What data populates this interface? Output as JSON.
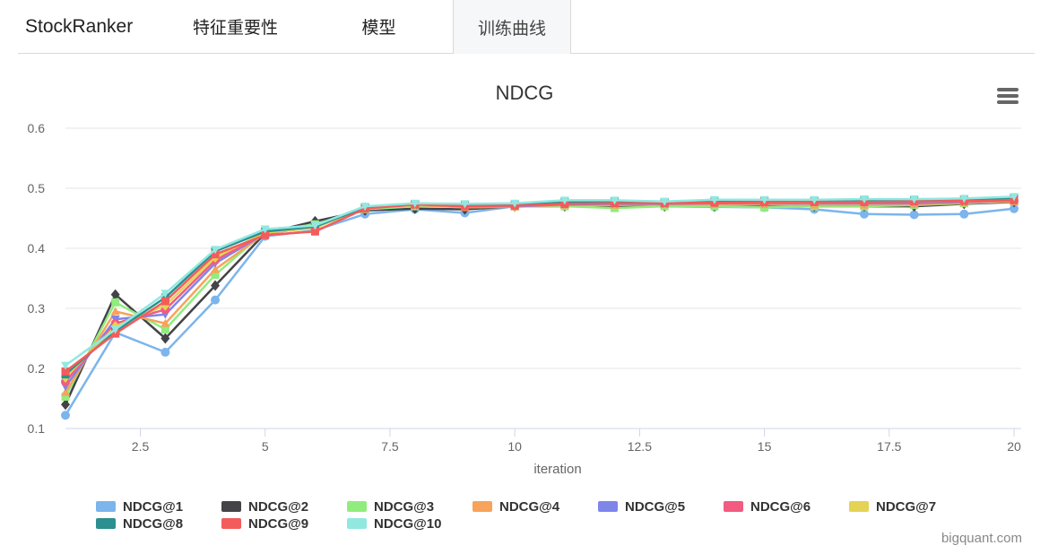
{
  "app": {
    "brand": "StockRanker",
    "tabs": [
      {
        "label": "特征重要性",
        "active": false
      },
      {
        "label": "模型",
        "active": false
      },
      {
        "label": "训练曲线",
        "active": true
      }
    ],
    "watermark": "bigquant.com"
  },
  "chart_data": {
    "type": "line",
    "title": "NDCG",
    "xlabel": "iteration",
    "ylabel": "",
    "xlim": [
      1,
      20
    ],
    "ylim": [
      0.1,
      0.6
    ],
    "x_ticks": [
      2.5,
      5,
      7.5,
      10,
      12.5,
      15,
      17.5,
      20
    ],
    "y_ticks": [
      0.1,
      0.2,
      0.3,
      0.4,
      0.5,
      0.6
    ],
    "grid": true,
    "legend_placement": "bottom",
    "x": [
      1,
      2,
      3,
      4,
      5,
      6,
      7,
      8,
      9,
      10,
      11,
      12,
      13,
      14,
      15,
      16,
      17,
      18,
      19,
      20
    ],
    "series": [
      {
        "name": "NDCG@1",
        "color": "#7cb5ec",
        "marker": "circle",
        "values": [
          0.122,
          0.26,
          0.227,
          0.314,
          0.42,
          0.43,
          0.457,
          0.465,
          0.459,
          0.47,
          0.47,
          0.47,
          0.47,
          0.469,
          0.468,
          0.465,
          0.457,
          0.456,
          0.457,
          0.466
        ]
      },
      {
        "name": "NDCG@2",
        "color": "#434348",
        "marker": "diamond",
        "values": [
          0.14,
          0.323,
          0.25,
          0.338,
          0.425,
          0.445,
          0.463,
          0.466,
          0.465,
          0.47,
          0.47,
          0.47,
          0.47,
          0.47,
          0.47,
          0.47,
          0.47,
          0.47,
          0.474,
          0.477
        ]
      },
      {
        "name": "NDCG@3",
        "color": "#90ed7d",
        "marker": "square",
        "values": [
          0.153,
          0.31,
          0.265,
          0.356,
          0.428,
          0.44,
          0.465,
          0.47,
          0.47,
          0.47,
          0.47,
          0.467,
          0.47,
          0.47,
          0.468,
          0.47,
          0.47,
          0.472,
          0.475,
          0.478
        ]
      },
      {
        "name": "NDCG@4",
        "color": "#f7a35c",
        "marker": "triangle",
        "values": [
          0.16,
          0.295,
          0.275,
          0.365,
          0.425,
          0.435,
          0.468,
          0.472,
          0.468,
          0.469,
          0.472,
          0.472,
          0.473,
          0.473,
          0.473,
          0.472,
          0.472,
          0.473,
          0.476,
          0.478
        ]
      },
      {
        "name": "NDCG@5",
        "color": "#8085e9",
        "marker": "triangle-down",
        "values": [
          0.17,
          0.282,
          0.29,
          0.375,
          0.425,
          0.435,
          0.467,
          0.474,
          0.47,
          0.47,
          0.473,
          0.474,
          0.474,
          0.475,
          0.475,
          0.475,
          0.475,
          0.475,
          0.477,
          0.48
        ]
      },
      {
        "name": "NDCG@6",
        "color": "#f15c80",
        "marker": "circle",
        "values": [
          0.178,
          0.275,
          0.298,
          0.38,
          0.425,
          0.435,
          0.468,
          0.472,
          0.471,
          0.471,
          0.474,
          0.475,
          0.475,
          0.476,
          0.476,
          0.477,
          0.478,
          0.478,
          0.478,
          0.48
        ]
      },
      {
        "name": "NDCG@7",
        "color": "#e4d354",
        "marker": "diamond",
        "values": [
          0.185,
          0.27,
          0.305,
          0.385,
          0.426,
          0.434,
          0.468,
          0.472,
          0.471,
          0.471,
          0.475,
          0.475,
          0.475,
          0.477,
          0.477,
          0.477,
          0.478,
          0.478,
          0.479,
          0.481
        ]
      },
      {
        "name": "NDCG@8",
        "color": "#2b908f",
        "marker": "square",
        "values": [
          0.19,
          0.262,
          0.318,
          0.395,
          0.428,
          0.436,
          0.468,
          0.473,
          0.472,
          0.472,
          0.477,
          0.478,
          0.477,
          0.478,
          0.479,
          0.479,
          0.48,
          0.48,
          0.481,
          0.484
        ]
      },
      {
        "name": "NDCG@9",
        "color": "#f45b5b",
        "marker": "square",
        "values": [
          0.195,
          0.258,
          0.312,
          0.39,
          0.422,
          0.428,
          0.466,
          0.473,
          0.47,
          0.471,
          0.474,
          0.475,
          0.475,
          0.476,
          0.477,
          0.477,
          0.477,
          0.478,
          0.479,
          0.48
        ]
      },
      {
        "name": "NDCG@10",
        "color": "#91e8e1",
        "marker": "triangle-down",
        "values": [
          0.205,
          0.265,
          0.325,
          0.398,
          0.432,
          0.438,
          0.47,
          0.475,
          0.474,
          0.475,
          0.48,
          0.48,
          0.478,
          0.481,
          0.481,
          0.481,
          0.482,
          0.482,
          0.483,
          0.486
        ]
      }
    ]
  }
}
